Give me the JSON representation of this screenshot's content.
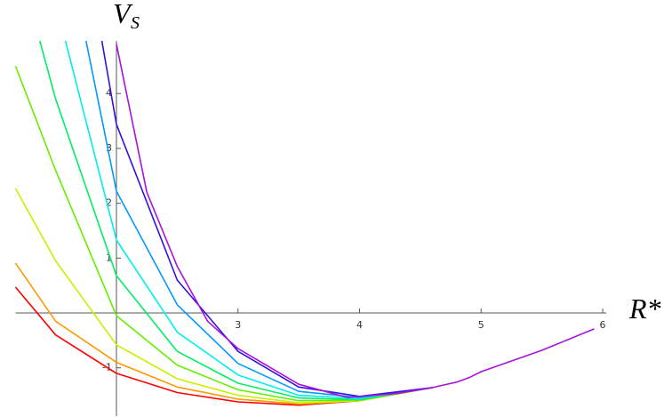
{
  "chart_data": {
    "type": "line",
    "xlabel": "R*",
    "ylabel": {
      "main": "V",
      "sub": "S"
    },
    "xlim": [
      1.17,
      6.0
    ],
    "ylim": [
      -1.88,
      4.96
    ],
    "axes_origin": [
      2,
      0
    ],
    "xticks": [
      3,
      4,
      5,
      6
    ],
    "yticks": [
      -1,
      1,
      2,
      3,
      4
    ],
    "series": [
      {
        "color": "#ff0000",
        "x": [
          1.17,
          1.5,
          2.0,
          2.5,
          3.0,
          3.5,
          4.0,
          4.6
        ],
        "values": [
          0.47,
          -0.4,
          -1.1,
          -1.45,
          -1.62,
          -1.68,
          -1.6,
          -1.36
        ]
      },
      {
        "color": "#ff9900",
        "x": [
          1.17,
          1.5,
          2.0,
          2.5,
          3.0,
          3.5,
          4.0,
          4.6
        ],
        "values": [
          0.91,
          -0.15,
          -0.9,
          -1.35,
          -1.57,
          -1.66,
          -1.6,
          -1.36
        ]
      },
      {
        "color": "#ccee00",
        "x": [
          1.17,
          1.5,
          2.0,
          2.5,
          3.0,
          3.5,
          4.0,
          4.6
        ],
        "values": [
          2.27,
          0.95,
          -0.58,
          -1.2,
          -1.5,
          -1.64,
          -1.6,
          -1.36
        ]
      },
      {
        "color": "#66ee00",
        "x": [
          1.17,
          1.5,
          2.0,
          2.5,
          3.0,
          3.5,
          4.0,
          4.6
        ],
        "values": [
          4.5,
          2.6,
          -0.05,
          -0.95,
          -1.4,
          -1.6,
          -1.59,
          -1.36
        ]
      },
      {
        "color": "#00ee66",
        "x": [
          1.37,
          1.5,
          2.0,
          2.5,
          3.0,
          3.5,
          4.0,
          4.6
        ],
        "values": [
          4.96,
          3.9,
          0.68,
          -0.7,
          -1.28,
          -1.55,
          -1.58,
          -1.36
        ]
      },
      {
        "color": "#00eeee",
        "x": [
          1.58,
          2.0,
          2.5,
          3.0,
          3.5,
          4.0,
          4.6
        ],
        "values": [
          4.96,
          1.33,
          -0.35,
          -1.13,
          -1.5,
          -1.56,
          -1.36
        ]
      },
      {
        "color": "#0099ff",
        "x": [
          1.75,
          2.0,
          2.5,
          3.0,
          3.5,
          4.0,
          4.6
        ],
        "values": [
          4.96,
          2.22,
          0.15,
          -0.92,
          -1.43,
          -1.54,
          -1.36
        ]
      },
      {
        "color": "#3311dd",
        "x": [
          1.88,
          2.0,
          2.5,
          3.0,
          3.5,
          4.0,
          4.6
        ],
        "values": [
          4.96,
          3.44,
          0.6,
          -0.7,
          -1.35,
          -1.52,
          -1.36
        ]
      },
      {
        "color": "#aa11dd",
        "x": [
          2.0,
          2.25,
          2.5,
          2.75,
          3.0,
          3.5,
          3.9,
          4.3,
          4.6,
          4.8,
          4.9,
          5.0,
          5.5,
          5.93
        ],
        "values": [
          4.9,
          2.2,
          0.85,
          -0.15,
          -0.65,
          -1.3,
          -1.54,
          -1.47,
          -1.36,
          -1.26,
          -1.18,
          -1.07,
          -0.68,
          -0.29
        ]
      }
    ]
  }
}
